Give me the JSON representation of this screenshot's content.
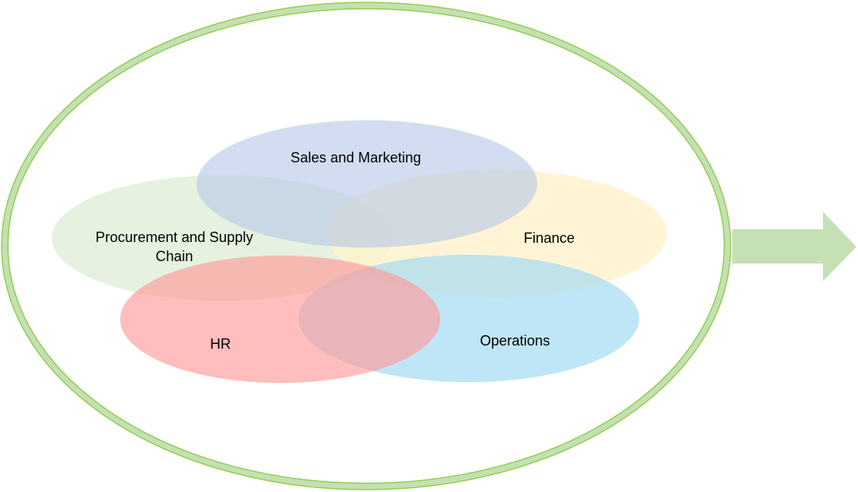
{
  "diagram": {
    "colors": {
      "outer_ring_fill": "#c5e0b4",
      "outer_ring_stroke": "#92d050",
      "arrow_fill": "#c5e0b4",
      "sales_marketing": "#b4c7e7",
      "finance": "#fff2cc",
      "procurement": "#e2f0d9",
      "hr": "#ff9999",
      "operations": "#9dd9f3"
    },
    "labels": {
      "sales_marketing": "Sales and Marketing",
      "finance": "Finance",
      "procurement_line1": "Procurement and Supply",
      "procurement_line2": "Chain",
      "hr": "HR",
      "operations": "Operations"
    }
  }
}
